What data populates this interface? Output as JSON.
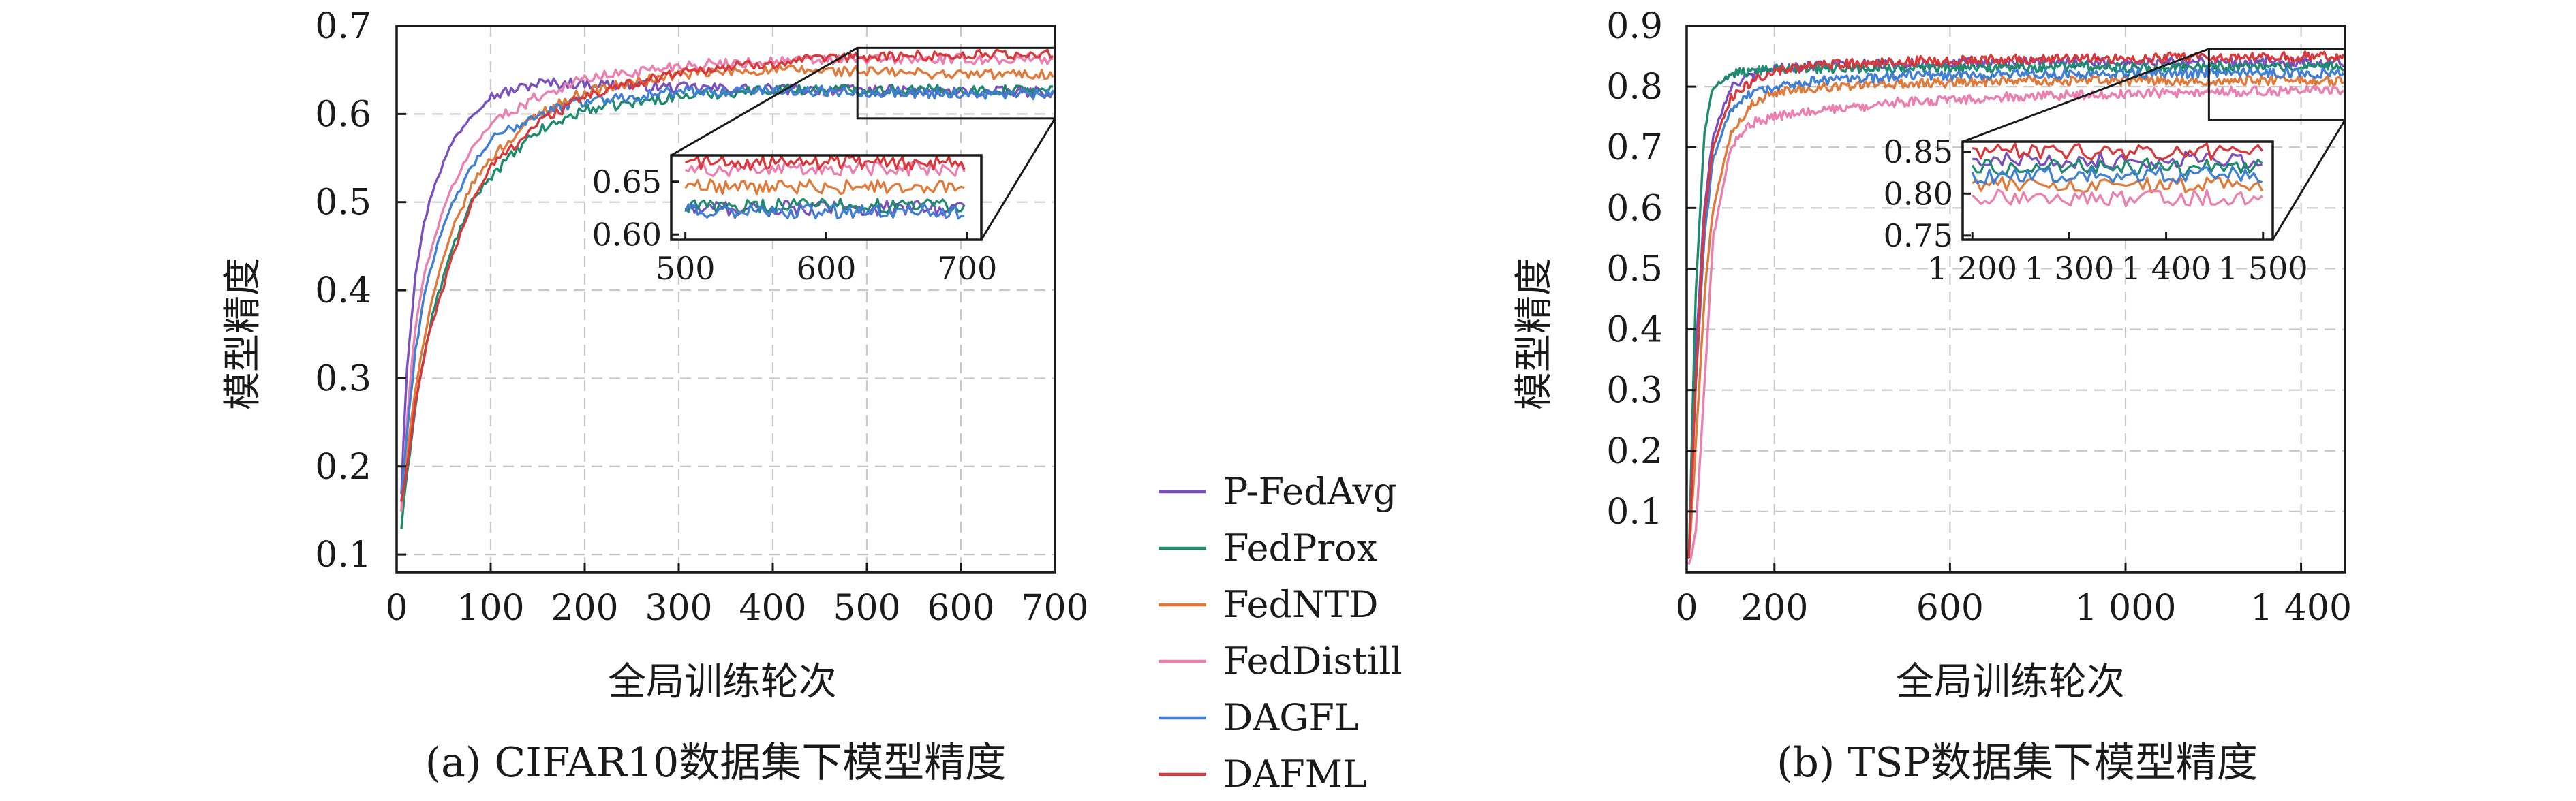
{
  "colors": {
    "P-FedAvg": "#7a4fbf",
    "FedProx": "#1e8a6e",
    "FedNTD": "#e07a3a",
    "FedDistill": "#ea7fb0",
    "DAGFL": "#3f7fd6",
    "DAFML": "#d9383a"
  },
  "legend": {
    "items": [
      "P-FedAvg",
      "FedProx",
      "FedNTD",
      "FedDistill",
      "DAGFL",
      "DAFML"
    ]
  },
  "chart_data": [
    {
      "type": "line",
      "caption": "(a) CIFAR10数据集下模型精度",
      "xlabel": "全局训练轮次",
      "ylabel": "模型精度",
      "xlim": [
        0,
        700
      ],
      "ylim": [
        0.08,
        0.7
      ],
      "xticks": [
        0,
        100,
        200,
        300,
        400,
        500,
        600,
        700
      ],
      "xtick_labels": [
        "0",
        "100",
        "200",
        "300",
        "400",
        "500",
        "600",
        "700"
      ],
      "yticks": [
        0.1,
        0.2,
        0.3,
        0.4,
        0.5,
        0.6,
        0.7
      ],
      "ytick_labels": [
        "0.1",
        "0.2",
        "0.3",
        "0.4",
        "0.5",
        "0.6",
        "0.7"
      ],
      "grid": true,
      "series": [
        {
          "name": "P-FedAvg",
          "x": [
            5,
            10,
            20,
            30,
            40,
            60,
            80,
            100,
            150,
            200,
            300,
            400,
            500,
            600,
            700
          ],
          "values": [
            0.17,
            0.3,
            0.42,
            0.48,
            0.52,
            0.57,
            0.6,
            0.62,
            0.635,
            0.635,
            0.63,
            0.628,
            0.627,
            0.625,
            0.625
          ]
        },
        {
          "name": "FedProx",
          "x": [
            5,
            10,
            20,
            30,
            40,
            60,
            80,
            100,
            150,
            200,
            300,
            400,
            500,
            600,
            700
          ],
          "values": [
            0.13,
            0.18,
            0.27,
            0.33,
            0.38,
            0.45,
            0.5,
            0.53,
            0.58,
            0.605,
            0.62,
            0.628,
            0.628,
            0.627,
            0.627
          ]
        },
        {
          "name": "FedNTD",
          "x": [
            5,
            10,
            20,
            30,
            40,
            60,
            80,
            100,
            150,
            200,
            300,
            400,
            500,
            600,
            700
          ],
          "values": [
            0.15,
            0.2,
            0.29,
            0.35,
            0.4,
            0.47,
            0.52,
            0.55,
            0.6,
            0.625,
            0.645,
            0.65,
            0.648,
            0.645,
            0.645
          ]
        },
        {
          "name": "FedDistill",
          "x": [
            5,
            10,
            20,
            30,
            40,
            60,
            80,
            100,
            150,
            200,
            300,
            400,
            500,
            600,
            700
          ],
          "values": [
            0.15,
            0.24,
            0.36,
            0.42,
            0.46,
            0.52,
            0.56,
            0.59,
            0.62,
            0.64,
            0.655,
            0.66,
            0.662,
            0.662,
            0.662
          ]
        },
        {
          "name": "DAGFL",
          "x": [
            5,
            10,
            20,
            30,
            40,
            60,
            80,
            100,
            150,
            200,
            300,
            400,
            500,
            600,
            700
          ],
          "values": [
            0.16,
            0.23,
            0.33,
            0.4,
            0.44,
            0.5,
            0.54,
            0.57,
            0.6,
            0.615,
            0.625,
            0.627,
            0.625,
            0.623,
            0.622
          ]
        },
        {
          "name": "DAFML",
          "x": [
            5,
            10,
            20,
            30,
            40,
            60,
            80,
            100,
            150,
            200,
            300,
            400,
            500,
            600,
            700
          ],
          "values": [
            0.16,
            0.19,
            0.27,
            0.33,
            0.37,
            0.44,
            0.5,
            0.54,
            0.59,
            0.62,
            0.648,
            0.658,
            0.665,
            0.667,
            0.668
          ]
        }
      ],
      "inset": {
        "xlim": [
          490,
          710
        ],
        "ylim": [
          0.595,
          0.675
        ],
        "xticks": [
          500,
          600,
          700
        ],
        "xtick_labels": [
          "500",
          "600",
          "700"
        ],
        "yticks": [
          0.6,
          0.65
        ],
        "ytick_labels": [
          "0.60",
          "0.65"
        ],
        "series_levels": {
          "P-FedAvg": 0.625,
          "FedProx": 0.627,
          "FedNTD": 0.645,
          "FedDistill": 0.662,
          "DAGFL": 0.622,
          "DAFML": 0.668
        }
      }
    },
    {
      "type": "line",
      "caption": "(b) TSP数据集下模型精度",
      "xlabel": "全局训练轮次",
      "ylabel": "模型精度",
      "xlim": [
        0,
        1500
      ],
      "ylim": [
        0,
        0.9
      ],
      "xticks": [
        0,
        200,
        600,
        1000,
        1400
      ],
      "xtick_labels": [
        "0",
        "200",
        "600",
        "1 000",
        "1 400"
      ],
      "yticks": [
        0.1,
        0.2,
        0.3,
        0.4,
        0.5,
        0.6,
        0.7,
        0.8,
        0.9
      ],
      "ytick_labels": [
        "0.1",
        "0.2",
        "0.3",
        "0.4",
        "0.5",
        "0.6",
        "0.7",
        "0.8",
        "0.9"
      ],
      "grid": true,
      "series": [
        {
          "name": "P-FedAvg",
          "x": [
            5,
            20,
            40,
            60,
            100,
            150,
            200,
            300,
            500,
            800,
            1100,
            1500
          ],
          "values": [
            0.02,
            0.35,
            0.6,
            0.72,
            0.8,
            0.82,
            0.83,
            0.835,
            0.838,
            0.84,
            0.84,
            0.84
          ]
        },
        {
          "name": "FedProx",
          "x": [
            5,
            20,
            40,
            60,
            100,
            150,
            200,
            300,
            500,
            800,
            1100,
            1500
          ],
          "values": [
            0.02,
            0.45,
            0.72,
            0.8,
            0.82,
            0.825,
            0.83,
            0.83,
            0.832,
            0.832,
            0.832,
            0.832
          ]
        },
        {
          "name": "FedNTD",
          "x": [
            5,
            20,
            40,
            60,
            100,
            150,
            200,
            300,
            500,
            800,
            1100,
            1500
          ],
          "values": [
            0.02,
            0.2,
            0.45,
            0.6,
            0.72,
            0.77,
            0.79,
            0.8,
            0.805,
            0.81,
            0.81,
            0.81
          ]
        },
        {
          "name": "FedDistill",
          "x": [
            5,
            20,
            40,
            60,
            100,
            150,
            200,
            300,
            500,
            800,
            1100,
            1500
          ],
          "values": [
            0.01,
            0.06,
            0.3,
            0.55,
            0.7,
            0.74,
            0.75,
            0.76,
            0.775,
            0.785,
            0.79,
            0.795
          ]
        },
        {
          "name": "DAGFL",
          "x": [
            5,
            20,
            40,
            60,
            100,
            150,
            200,
            300,
            500,
            800,
            1100,
            1500
          ],
          "values": [
            0.02,
            0.3,
            0.55,
            0.68,
            0.76,
            0.79,
            0.8,
            0.81,
            0.818,
            0.82,
            0.822,
            0.822
          ]
        },
        {
          "name": "DAFML",
          "x": [
            5,
            20,
            40,
            60,
            100,
            150,
            200,
            300,
            500,
            800,
            1100,
            1500
          ],
          "values": [
            0.02,
            0.3,
            0.58,
            0.7,
            0.78,
            0.81,
            0.825,
            0.835,
            0.842,
            0.845,
            0.848,
            0.85
          ]
        }
      ],
      "inset": {
        "xlim": [
          1190,
          1510
        ],
        "ylim": [
          0.745,
          0.862
        ],
        "xticks": [
          1200,
          1300,
          1400,
          1500
        ],
        "xtick_labels": [
          "1 200",
          "1 300",
          "1 400",
          "1 500"
        ],
        "yticks": [
          0.75,
          0.8,
          0.85
        ],
        "ytick_labels": [
          "0.75",
          "0.80",
          "0.85"
        ],
        "series_levels": {
          "P-FedAvg": 0.84,
          "FedProx": 0.832,
          "FedNTD": 0.81,
          "FedDistill": 0.795,
          "DAGFL": 0.822,
          "DAFML": 0.85
        }
      }
    }
  ]
}
